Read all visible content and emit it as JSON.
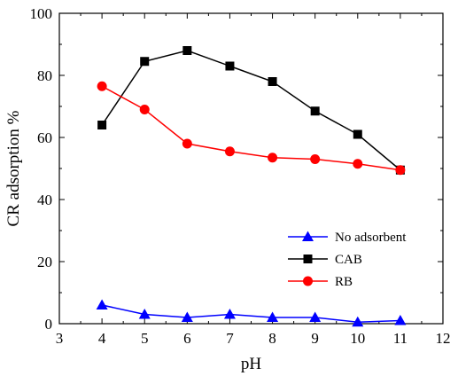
{
  "chart_data": {
    "type": "line",
    "title": "",
    "xlabel": "pH",
    "ylabel": "CR adsorption %",
    "xlim": [
      3,
      12
    ],
    "ylim": [
      0,
      100
    ],
    "xticks": [
      3,
      4,
      5,
      6,
      7,
      8,
      9,
      10,
      11,
      12
    ],
    "yticks": [
      0,
      20,
      40,
      60,
      80,
      100
    ],
    "grid": false,
    "legend_position": "lower-right",
    "series": [
      {
        "name": "No adsorbent",
        "color": "#0000ff",
        "marker": "triangle",
        "x": [
          4,
          5,
          6,
          7,
          8,
          9,
          10,
          11
        ],
        "y": [
          6.0,
          3.0,
          2.0,
          3.0,
          2.0,
          2.0,
          0.5,
          1.0
        ]
      },
      {
        "name": "CAB",
        "color": "#000000",
        "marker": "square",
        "x": [
          4,
          5,
          6,
          7,
          8,
          9,
          10,
          11
        ],
        "y": [
          64.0,
          84.5,
          88.0,
          83.0,
          78.0,
          68.5,
          61.0,
          49.5
        ]
      },
      {
        "name": "RB",
        "color": "#ff0000",
        "marker": "circle",
        "x": [
          4,
          5,
          6,
          7,
          8,
          9,
          10,
          11
        ],
        "y": [
          76.5,
          69.0,
          58.0,
          55.5,
          53.5,
          53.0,
          51.5,
          49.5
        ]
      }
    ]
  }
}
